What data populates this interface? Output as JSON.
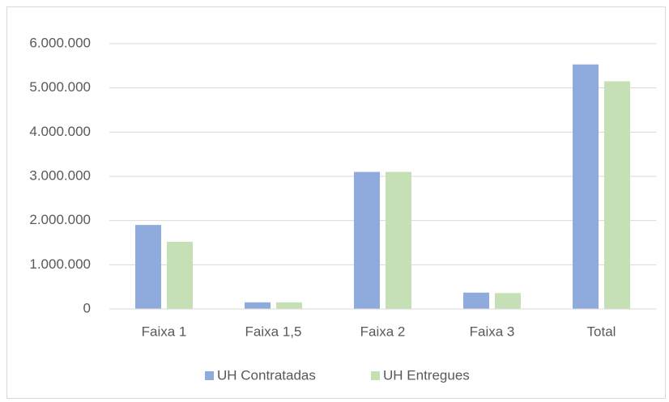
{
  "chart_data": {
    "type": "bar",
    "categories": [
      "Faixa 1",
      "Faixa 1,5",
      "Faixa 2",
      "Faixa 3",
      "Total"
    ],
    "series": [
      {
        "name": "UH Contratadas",
        "color": "#8faadc",
        "values": [
          1900000,
          150000,
          3100000,
          370000,
          5530000
        ]
      },
      {
        "name": "UH Entregues",
        "color": "#c5e0b4",
        "values": [
          1520000,
          150000,
          3100000,
          360000,
          5150000
        ]
      }
    ],
    "ylim": [
      0,
      6000000
    ],
    "yticks": [
      0,
      {
        "value": 1000000,
        "label": "1.000.000"
      },
      {
        "value": 2000000,
        "label": "2.000.000"
      },
      {
        "value": 3000000,
        "label": "3.000.000"
      },
      {
        "value": 4000000,
        "label": "4.000.000"
      },
      {
        "value": 5000000,
        "label": "5.000.000"
      },
      {
        "value": 6000000,
        "label": "6.000.000"
      }
    ],
    "grid": true,
    "legend": "bottom"
  }
}
